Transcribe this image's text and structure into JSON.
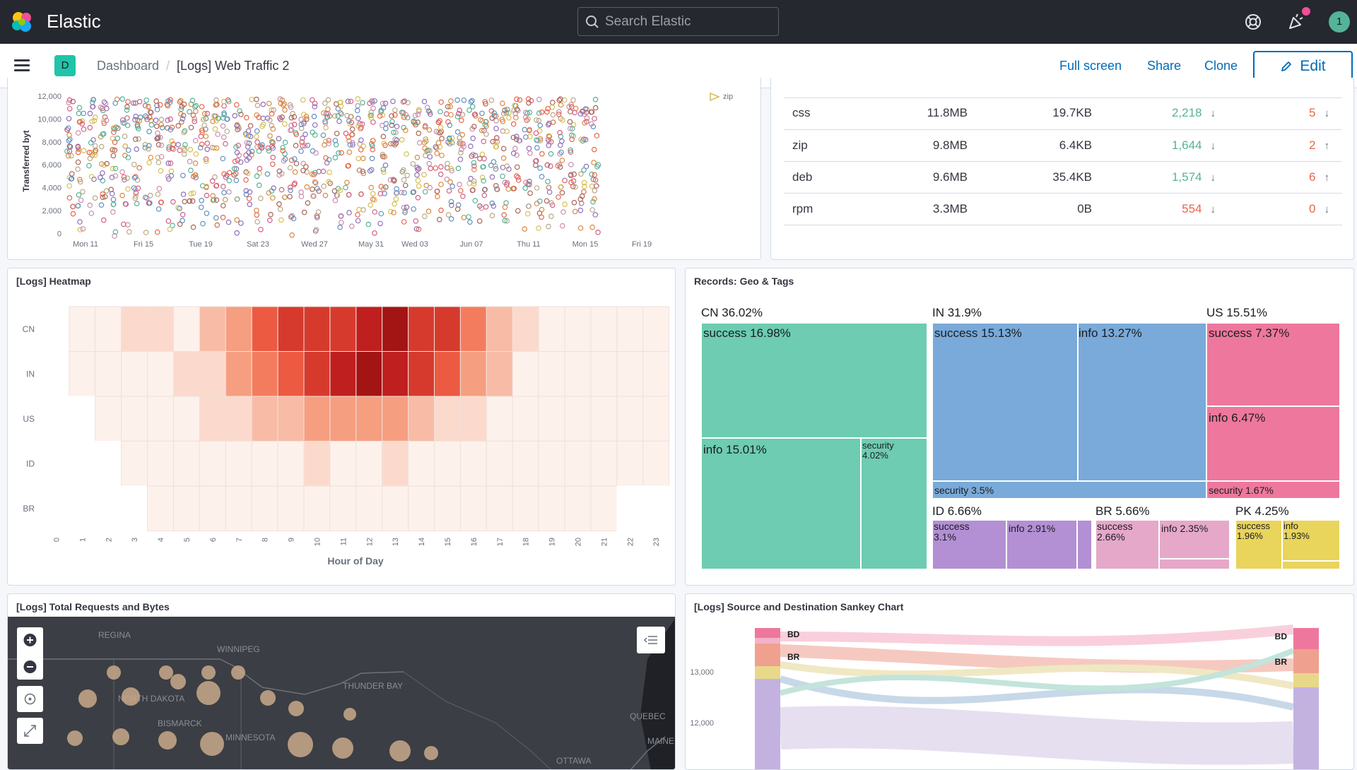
{
  "header": {
    "brand": "Elastic",
    "search_placeholder": "Search Elastic",
    "avatar_initial": "1",
    "space_initial": "D",
    "breadcrumb_root": "Dashboard",
    "breadcrumb_current": "[Logs] Web Traffic 2",
    "nav": {
      "full_screen": "Full screen",
      "share": "Share",
      "clone": "Clone",
      "edit": "Edit"
    }
  },
  "colors": {
    "accent": "#006bb8",
    "success": "#54b399",
    "danger": "#e7664c"
  },
  "scatter": {
    "ylabel": "Transferred byt",
    "yticks": [
      "12,000",
      "10,000",
      "8,000",
      "6,000",
      "4,000",
      "2,000",
      "0"
    ],
    "xticks": [
      "Mon 11",
      "Fri 15",
      "Tue 19",
      "Sat 23",
      "Wed 27",
      "May 31",
      "Wed 03",
      "Jun 07",
      "Thu 11",
      "Mon 15",
      "Fri 19"
    ],
    "legend": "zip"
  },
  "file_table": {
    "rows": [
      {
        "ext": "css",
        "total": "11.8MB",
        "avg": "19.7KB",
        "count": "2,218",
        "count_dir": "down",
        "count_class": "pos",
        "errors": "5",
        "err_dir": "down"
      },
      {
        "ext": "zip",
        "total": "9.8MB",
        "avg": "6.4KB",
        "count": "1,644",
        "count_dir": "down",
        "count_class": "pos",
        "errors": "2",
        "err_dir": "up"
      },
      {
        "ext": "deb",
        "total": "9.6MB",
        "avg": "35.4KB",
        "count": "1,574",
        "count_dir": "down",
        "count_class": "pos",
        "errors": "6",
        "err_dir": "up"
      },
      {
        "ext": "rpm",
        "total": "3.3MB",
        "avg": "0B",
        "count": "554",
        "count_dir": "down",
        "count_class": "neg",
        "errors": "0",
        "err_dir": "down"
      }
    ]
  },
  "heatmap": {
    "title": "[Logs] Heatmap",
    "xlabel": "Hour of Day",
    "rows": [
      "CN",
      "IN",
      "US",
      "ID",
      "BR"
    ],
    "hours": [
      "0",
      "1",
      "2",
      "3",
      "4",
      "5",
      "6",
      "7",
      "8",
      "9",
      "10",
      "11",
      "12",
      "13",
      "14",
      "15",
      "16",
      "17",
      "18",
      "19",
      "20",
      "21",
      "22",
      "23"
    ],
    "levels": [
      [
        0,
        1,
        1,
        2,
        2,
        1,
        3,
        4,
        6,
        7,
        7,
        7,
        8,
        9,
        7,
        7,
        5,
        3,
        2,
        1,
        1,
        1,
        1,
        1
      ],
      [
        0,
        1,
        1,
        1,
        1,
        2,
        2,
        4,
        5,
        6,
        7,
        8,
        9,
        8,
        7,
        6,
        4,
        3,
        1,
        1,
        1,
        1,
        1,
        1
      ],
      [
        0,
        0,
        1,
        1,
        1,
        1,
        2,
        2,
        3,
        3,
        4,
        4,
        4,
        4,
        3,
        2,
        2,
        1,
        1,
        1,
        1,
        1,
        1,
        1
      ],
      [
        0,
        0,
        0,
        1,
        1,
        1,
        1,
        1,
        1,
        1,
        2,
        1,
        1,
        2,
        1,
        1,
        1,
        1,
        1,
        1,
        1,
        1,
        1,
        1
      ],
      [
        0,
        0,
        0,
        0,
        1,
        1,
        1,
        1,
        1,
        1,
        1,
        1,
        1,
        1,
        1,
        1,
        1,
        1,
        1,
        1,
        1,
        1,
        0,
        0
      ]
    ]
  },
  "treemap": {
    "title": "Records: Geo & Tags",
    "groups": [
      {
        "label": "CN 36.02%"
      },
      {
        "label": "IN 31.9%"
      },
      {
        "label": "US 15.51%"
      },
      {
        "label": "ID 6.66%"
      },
      {
        "label": "BR 5.66%"
      },
      {
        "label": "PK 4.25%"
      }
    ],
    "cells": [
      {
        "label": "success 16.98%"
      },
      {
        "label": "info 15.01%"
      },
      {
        "label": "security 4.02%"
      },
      {
        "label": "success 15.13%"
      },
      {
        "label": "info 13.27%"
      },
      {
        "label": "security 3.5%"
      },
      {
        "label": "success 7.37%"
      },
      {
        "label": "info 6.47%"
      },
      {
        "label": "security 1.67%"
      },
      {
        "label": "success 3.1%"
      },
      {
        "label": "info 2.91%"
      },
      {
        "label": "success 2.66%"
      },
      {
        "label": "info 2.35%"
      },
      {
        "label": "success 1.96%"
      },
      {
        "label": "info 1.93%"
      }
    ]
  },
  "map": {
    "title": "[Logs] Total Requests and Bytes",
    "labels": [
      "REGINA",
      "WINNIPEG",
      "THUNDER BAY",
      "NORTH DAKOTA",
      "BISMARCK",
      "MINNESOTA",
      "QUEBEC",
      "MAINE",
      "OTTAWA"
    ]
  },
  "sankey": {
    "title": "[Logs] Source and Destination Sankey Chart",
    "yticks": [
      "13,000",
      "12,000"
    ],
    "left_labels": [
      "BD",
      "BR"
    ],
    "right_labels": [
      "BD",
      "BR"
    ]
  }
}
